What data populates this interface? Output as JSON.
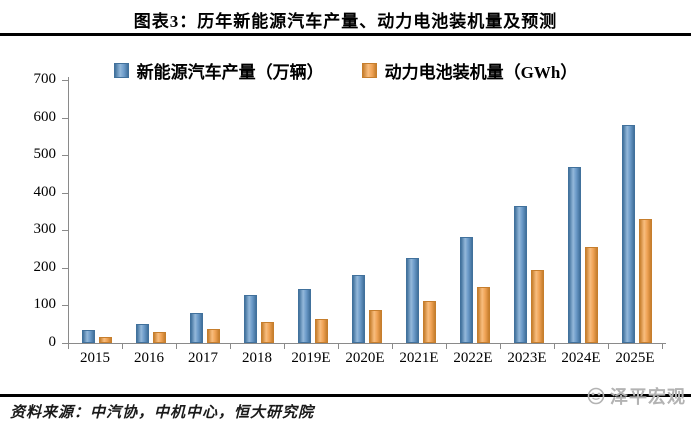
{
  "header": {
    "title": "图表3：历年新能源汽车产量、动力电池装机量及预测"
  },
  "chart_data": {
    "type": "bar",
    "title": "图表3：历年新能源汽车产量、动力电池装机量及预测",
    "categories": [
      "2015",
      "2016",
      "2017",
      "2018",
      "2019E",
      "2020E",
      "2021E",
      "2022E",
      "2023E",
      "2024E",
      "2025E"
    ],
    "series": [
      {
        "name": "新能源汽车产量（万辆）",
        "values": [
          34,
          51,
          79,
          127,
          145,
          181,
          226,
          283,
          364,
          468,
          580
        ],
        "color": "#6c9bc9",
        "color_light": "#93b8da",
        "color_dark": "#41719c"
      },
      {
        "name": "动力电池装机量（GWh）",
        "values": [
          16,
          28,
          36,
          57,
          65,
          87,
          111,
          148,
          195,
          256,
          331
        ],
        "color": "#f0a356",
        "color_light": "#f8bd7e",
        "color_dark": "#c67e2d"
      }
    ],
    "ylim": [
      0,
      700
    ],
    "yticks": [
      0,
      100,
      200,
      300,
      400,
      500,
      600,
      700
    ],
    "grid": false,
    "legend_position": "top",
    "axis_color": "#8a8a8a"
  },
  "footer": {
    "source": "资料来源：中汽协，中机中心，恒大研究院",
    "logo_text": "泽平宏观"
  }
}
